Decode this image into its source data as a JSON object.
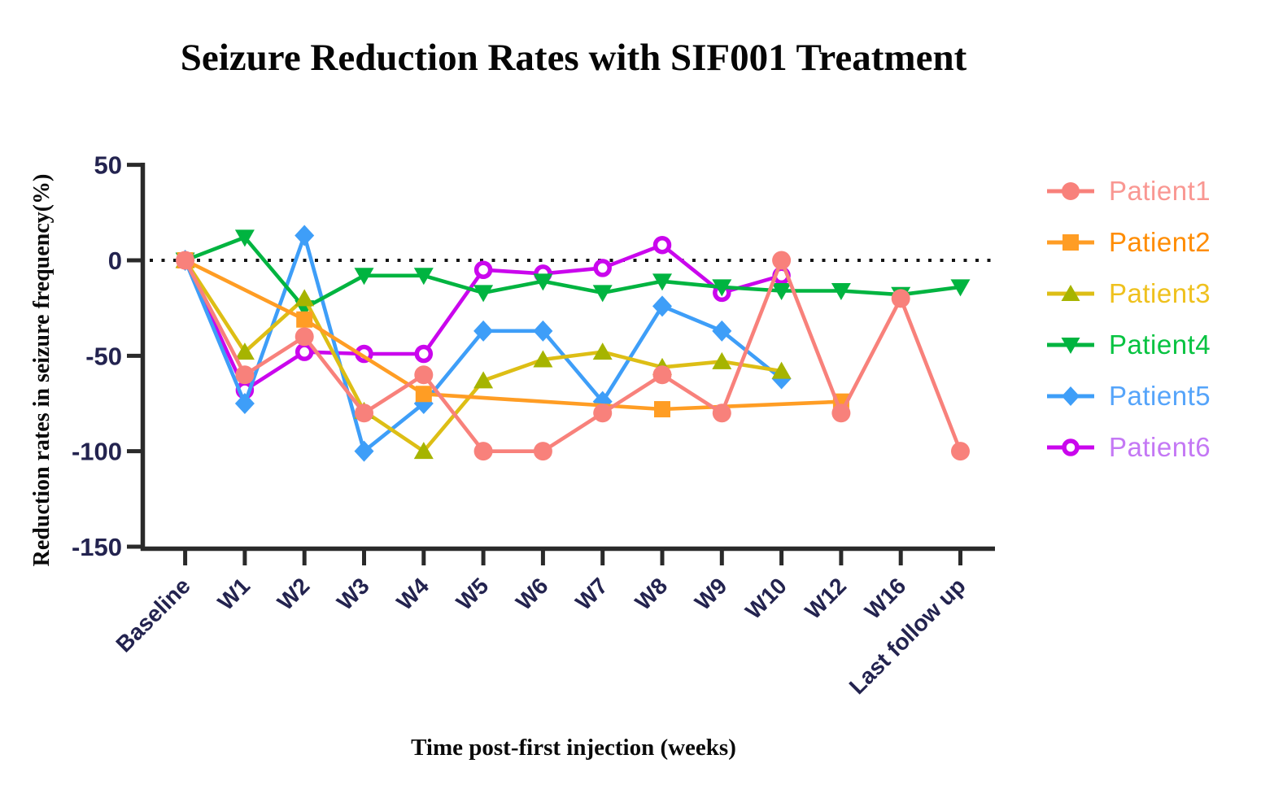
{
  "chart_data": {
    "type": "line",
    "title": "Seizure Reduction Rates with SIF001 Treatment",
    "xlabel": "Time post-first injection (weeks)",
    "ylabel": "Reduction rates in seizure frequency(%)",
    "categories": [
      "Baseline",
      "W1",
      "W2",
      "W3",
      "W4",
      "W5",
      "W6",
      "W7",
      "W8",
      "W9",
      "W10",
      "W12",
      "W16",
      "Last follow up"
    ],
    "y_ticks": [
      50,
      0,
      -50,
      -100,
      -150
    ],
    "ylim": [
      -150,
      50
    ],
    "zero_line": "dotted",
    "grid": "off",
    "legend_position": "right",
    "axis_color": "#2a2a2a",
    "tick_label_color": "#23234f",
    "zero_line_color": "#151515",
    "series": [
      {
        "name": "Patient1",
        "marker": "circle",
        "color": "#F8817B",
        "marker_color": "#F8817B",
        "label_color": "#F99792",
        "values": [
          0,
          -60,
          -40,
          -80,
          -60,
          -100,
          -100,
          -80,
          -60,
          -80,
          0,
          -80,
          -20,
          -100
        ]
      },
      {
        "name": "Patient2",
        "marker": "square",
        "color": "#FF9D24",
        "marker_color": "#FF9D24",
        "label_color": "#FF8C00",
        "values": [
          0,
          null,
          -31,
          null,
          -70,
          null,
          null,
          null,
          -78,
          null,
          null,
          -74,
          null,
          null
        ]
      },
      {
        "name": "Patient3",
        "marker": "triangle_up",
        "color": "#DDBE15",
        "marker_color": "#A6B400",
        "label_color": "#EFC11E",
        "values": [
          0,
          -48,
          -20,
          -79,
          -100,
          -63,
          -52,
          -48,
          -56,
          -53,
          -58,
          null,
          null,
          null
        ]
      },
      {
        "name": "Patient4",
        "marker": "triangle_down",
        "color": "#00B440",
        "marker_color": "#00B440",
        "label_color": "#07C341",
        "values": [
          0,
          12,
          -25,
          -8,
          -8,
          -17,
          -11,
          -17,
          -11,
          -14,
          -16,
          -16,
          -18,
          -14
        ]
      },
      {
        "name": "Patient5",
        "marker": "diamond",
        "color": "#3E9EF8",
        "marker_color": "#3E9EF8",
        "label_color": "#55A4FA",
        "values": [
          0,
          -75,
          13,
          -100,
          -75,
          -37,
          -37,
          -74,
          -24,
          -37,
          -62,
          null,
          null,
          null
        ]
      },
      {
        "name": "Patient6",
        "marker": "circle_open",
        "color": "#CA06ED",
        "marker_color": "#CA06ED",
        "label_color": "#C478F5",
        "values": [
          0,
          -68,
          -48,
          -49,
          -49,
          -5,
          -7,
          -4,
          8,
          -17,
          -8,
          null,
          null,
          null
        ]
      }
    ]
  }
}
